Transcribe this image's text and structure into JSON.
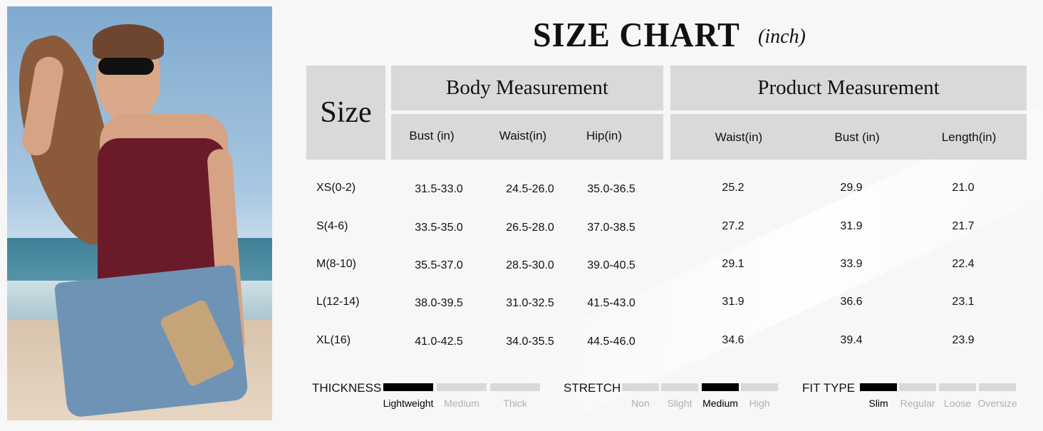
{
  "title": "SIZE CHART",
  "unit": "(inch)",
  "table": {
    "size_header": "Size",
    "body_header": "Body Measurement",
    "product_header": "Product Measurement",
    "body_columns": [
      "Bust (in)",
      "Waist(in)",
      "Hip(in)"
    ],
    "product_columns": [
      "Waist(in)",
      "Bust (in)",
      "Length(in)"
    ],
    "rows": [
      {
        "size": "XS(0-2)",
        "body": [
          "31.5-33.0",
          "24.5-26.0",
          "35.0-36.5"
        ],
        "product": [
          "25.2",
          "29.9",
          "21.0"
        ]
      },
      {
        "size": "S(4-6)",
        "body": [
          "33.5-35.0",
          "26.5-28.0",
          "37.0-38.5"
        ],
        "product": [
          "27.2",
          "31.9",
          "21.7"
        ]
      },
      {
        "size": "M(8-10)",
        "body": [
          "35.5-37.0",
          "28.5-30.0",
          "39.0-40.5"
        ],
        "product": [
          "29.1",
          "33.9",
          "22.4"
        ]
      },
      {
        "size": "L(12-14)",
        "body": [
          "38.0-39.5",
          "31.0-32.5",
          "41.5-43.0"
        ],
        "product": [
          "31.9",
          "36.6",
          "23.1"
        ]
      },
      {
        "size": "XL(16)",
        "body": [
          "41.0-42.5",
          "34.0-35.5",
          "44.5-46.0"
        ],
        "product": [
          "34.6",
          "39.4",
          "23.9"
        ]
      }
    ]
  },
  "scales": [
    {
      "label": "THICKNESS",
      "levels": [
        "Lightweight",
        "Medium",
        "Thick"
      ],
      "selected": "Lightweight"
    },
    {
      "label": "STRETCH",
      "levels": [
        "Non",
        "Slight",
        "Medium",
        "High"
      ],
      "selected": "Medium"
    },
    {
      "label": "FIT TYPE",
      "levels": [
        "Slim",
        "Regular",
        "Loose",
        "Oversize"
      ],
      "selected": "Slim"
    }
  ],
  "colors": {
    "header_bg": "#d9d9d9",
    "selected": "#000000",
    "unselected": "#d9d9d9",
    "top": "#6b1a2a",
    "denim": "#6f93b5"
  }
}
